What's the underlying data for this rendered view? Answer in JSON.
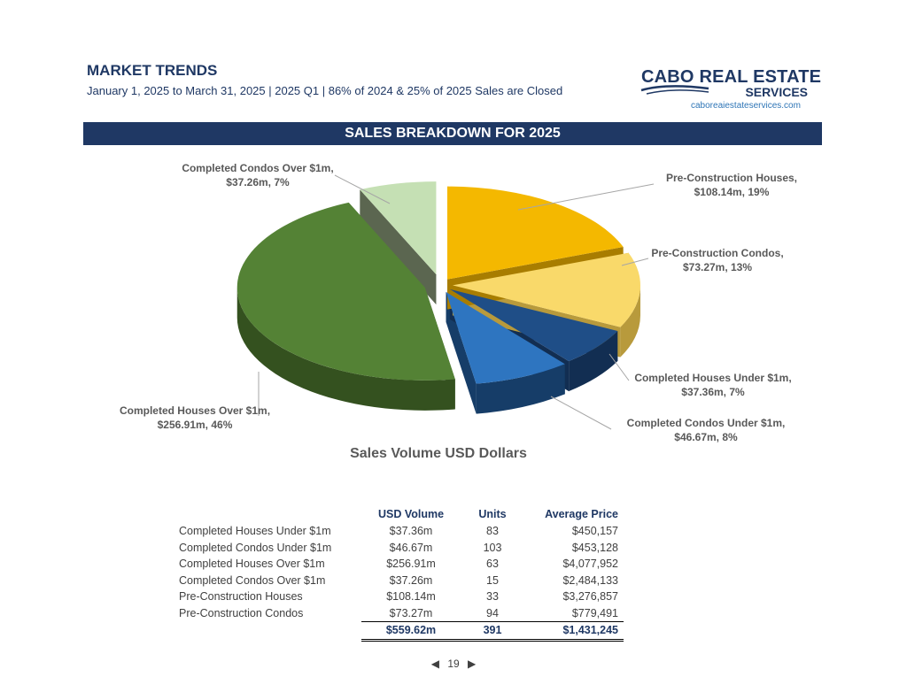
{
  "header": {
    "title": "MARKET TRENDS",
    "subtitle": "January 1, 2025 to March 31, 2025 | 2025 Q1 | 86% of 2024 & 25% of 2025 Sales are Closed"
  },
  "logo": {
    "line1": "CABO REAL ESTATE",
    "line2": "SERVICES",
    "url": "caboreaiestateservices.com"
  },
  "banner": {
    "title": "SALES BREAKDOWN FOR 2025"
  },
  "chart_data": {
    "type": "pie",
    "title": "Sales Volume USD Dollars",
    "slices": [
      {
        "name": "Pre-Construction Houses",
        "label_line1": "Pre-Construction Houses,",
        "label_line2": "$108.14m, 19%",
        "value": 108.14,
        "percent": 19,
        "color": "#f4b800",
        "side": "#a87d00"
      },
      {
        "name": "Pre-Construction Condos",
        "label_line1": "Pre-Construction Condos,",
        "label_line2": "$73.27m, 13%",
        "value": 73.27,
        "percent": 13,
        "color": "#f9d96a",
        "side": "#b89a3c"
      },
      {
        "name": "Completed Houses Under $1m",
        "label_line1": "Completed Houses Under $1m,",
        "label_line2": "$37.36m, 7%",
        "value": 37.36,
        "percent": 7,
        "color": "#1f4e87",
        "side": "#122e52"
      },
      {
        "name": "Completed Condos Under $1m",
        "label_line1": "Completed Condos Under $1m,",
        "label_line2": "$46.67m, 8%",
        "value": 46.67,
        "percent": 8,
        "color": "#2e75c0",
        "side": "#163d68"
      },
      {
        "name": "Completed Houses Over $1m",
        "label_line1": "Completed Houses Over $1m,",
        "label_line2": "$256.91m, 46%",
        "value": 256.91,
        "percent": 46,
        "color": "#548235",
        "side": "#34511f"
      },
      {
        "name": "Completed Condos Over $1m",
        "label_line1": "Completed Condos Over $1m,",
        "label_line2": "$37.26m, 7%",
        "value": 37.26,
        "percent": 7,
        "color": "#c5e0b4",
        "side": "#5b6650"
      }
    ]
  },
  "table": {
    "headers": [
      "USD Volume",
      "Units",
      "Average Price"
    ],
    "rows": [
      {
        "name": "Completed Houses Under $1m",
        "volume": "$37.36m",
        "units": "83",
        "avg": "$450,157"
      },
      {
        "name": "Completed Condos Under $1m",
        "volume": "$46.67m",
        "units": "103",
        "avg": "$453,128"
      },
      {
        "name": "Completed Houses Over $1m",
        "volume": "$256.91m",
        "units": "63",
        "avg": "$4,077,952"
      },
      {
        "name": "Completed Condos Over $1m",
        "volume": "$37.26m",
        "units": "15",
        "avg": "$2,484,133"
      },
      {
        "name": "Pre-Construction Houses",
        "volume": "$108.14m",
        "units": "33",
        "avg": "$3,276,857"
      },
      {
        "name": "Pre-Construction Condos",
        "volume": "$73.27m",
        "units": "94",
        "avg": "$779,491"
      }
    ],
    "total": {
      "volume": "$559.62m",
      "units": "391",
      "avg": "$1,431,245"
    }
  },
  "pager": {
    "prev": "◀",
    "page": "19",
    "next": "▶"
  },
  "colors": {
    "brand": "#1f3864",
    "link": "#2e75b6"
  }
}
